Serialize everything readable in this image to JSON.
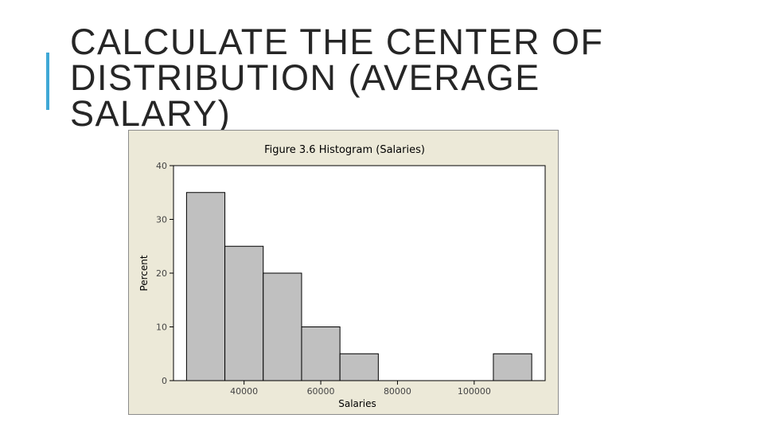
{
  "slide": {
    "title": "CALCULATE THE CENTER OF\nDISTRIBUTION (AVERAGE\nSALARY)",
    "accent_color": "#3fa8d6"
  },
  "chart_data": {
    "type": "bar",
    "title": "Figure 3.6 Histogram (Salaries)",
    "xlabel": "Salaries",
    "ylabel": "Percent",
    "bins": [
      {
        "start": 25000,
        "end": 35000,
        "value": 35
      },
      {
        "start": 35000,
        "end": 45000,
        "value": 25
      },
      {
        "start": 45000,
        "end": 55000,
        "value": 20
      },
      {
        "start": 55000,
        "end": 65000,
        "value": 10
      },
      {
        "start": 65000,
        "end": 75000,
        "value": 5
      },
      {
        "start": 75000,
        "end": 85000,
        "value": 0
      },
      {
        "start": 85000,
        "end": 95000,
        "value": 0
      },
      {
        "start": 95000,
        "end": 105000,
        "value": 0
      },
      {
        "start": 105000,
        "end": 115000,
        "value": 5
      }
    ],
    "xlim": [
      21600,
      118500
    ],
    "ylim": [
      0,
      40
    ],
    "xticks": [
      40000,
      60000,
      80000,
      100000
    ],
    "xtick_labels": [
      "40000",
      "60000",
      "80000",
      "100000"
    ],
    "yticks": [
      0,
      10,
      20,
      30,
      40
    ],
    "ytick_labels": [
      "0",
      "10",
      "20",
      "30",
      "40"
    ],
    "bar_color": "#c0c0c0",
    "plot_background": "#ffffff",
    "figure_background": "#ece9d8",
    "grid": false,
    "legend": "none"
  }
}
